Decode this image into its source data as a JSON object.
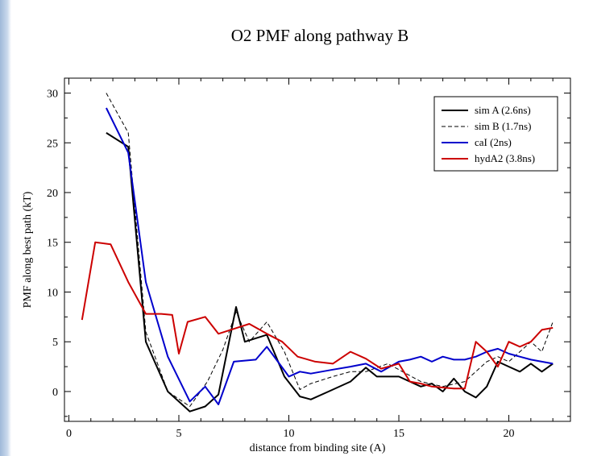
{
  "chart_data": {
    "type": "line",
    "title": "O2 PMF along pathway B",
    "xlabel": "distance from binding site (A)",
    "ylabel": "PMF along best path (kT)",
    "xlim": [
      -0.2,
      22.8
    ],
    "ylim": [
      -3,
      31.5
    ],
    "xticks": [
      0,
      5,
      10,
      15,
      20
    ],
    "yticks": [
      0,
      5,
      10,
      15,
      20,
      25,
      30
    ],
    "legend_position": "top-right",
    "series": [
      {
        "name": "sim A (2.6ns)",
        "color": "#000000",
        "style": "solid",
        "x": [
          1.7,
          2.7,
          3.5,
          4.5,
          5.5,
          6.2,
          6.8,
          7.6,
          8.0,
          9.0,
          9.8,
          10.5,
          11.0,
          11.8,
          12.8,
          13.5,
          14.0,
          15.0,
          16.0,
          16.5,
          17.0,
          17.5,
          18.0,
          18.5,
          19.0,
          19.5,
          20.0,
          20.5,
          21.0,
          21.5,
          22.0
        ],
        "y": [
          26.0,
          24.6,
          5.0,
          0.0,
          -2.0,
          -1.5,
          -0.3,
          8.5,
          5.0,
          5.7,
          1.5,
          -0.5,
          -0.8,
          0.0,
          1.0,
          2.4,
          1.5,
          1.5,
          0.5,
          0.8,
          0.0,
          1.3,
          0.0,
          -0.6,
          0.5,
          3.0,
          2.5,
          2.0,
          2.8,
          2.0,
          2.8
        ]
      },
      {
        "name": "sim B (1.7ns)",
        "color": "#000000",
        "style": "dashed",
        "x": [
          1.7,
          2.7,
          3.5,
          4.5,
          5.5,
          6.3,
          7.0,
          7.6,
          8.2,
          9.0,
          9.8,
          10.5,
          11.0,
          12.0,
          12.8,
          13.5,
          14.5,
          15.0,
          16.0,
          17.0,
          18.0,
          19.0,
          19.5,
          20.0,
          20.5,
          21.0,
          21.5,
          22.0
        ],
        "y": [
          30.0,
          26.0,
          6.0,
          0.0,
          -1.5,
          1.0,
          4.2,
          8.0,
          5.0,
          7.0,
          4.0,
          0.2,
          0.8,
          1.5,
          2.0,
          2.0,
          2.8,
          2.2,
          1.0,
          0.5,
          1.0,
          3.0,
          3.5,
          3.0,
          4.0,
          5.0,
          4.0,
          7.0
        ]
      },
      {
        "name": "caI (2ns)",
        "color": "#0000cc",
        "style": "solid",
        "x": [
          1.7,
          2.7,
          3.5,
          4.5,
          5.5,
          6.2,
          6.8,
          7.5,
          8.5,
          9.0,
          9.5,
          10.0,
          10.5,
          11.0,
          12.0,
          12.8,
          13.5,
          14.2,
          15.0,
          15.5,
          16.0,
          16.5,
          17.0,
          17.5,
          18.0,
          18.5,
          19.0,
          19.5,
          20.0,
          20.5,
          21.0,
          21.5,
          22.0
        ],
        "y": [
          28.5,
          24.0,
          11.0,
          3.5,
          -1.0,
          0.5,
          -1.3,
          3.0,
          3.2,
          4.5,
          3.0,
          1.5,
          2.0,
          1.8,
          2.2,
          2.5,
          2.8,
          2.0,
          3.0,
          3.2,
          3.5,
          3.0,
          3.5,
          3.2,
          3.2,
          3.5,
          4.0,
          4.3,
          3.8,
          3.5,
          3.2,
          3.0,
          2.8
        ]
      },
      {
        "name": "hydA2 (3.8ns)",
        "color": "#cc0000",
        "style": "solid",
        "x": [
          0.6,
          1.2,
          1.9,
          2.7,
          3.5,
          4.2,
          4.7,
          5.0,
          5.4,
          6.2,
          6.8,
          7.5,
          8.2,
          9.0,
          9.7,
          10.4,
          11.2,
          12.0,
          12.8,
          13.5,
          14.2,
          15.0,
          15.5,
          16.0,
          16.5,
          17.0,
          17.5,
          18.0,
          18.5,
          19.0,
          19.5,
          20.0,
          20.5,
          21.0,
          21.5,
          22.0
        ],
        "y": [
          7.2,
          15.0,
          14.8,
          11.0,
          7.8,
          7.8,
          7.7,
          3.8,
          7.0,
          7.5,
          5.8,
          6.3,
          6.8,
          5.8,
          5.0,
          3.5,
          3.0,
          2.8,
          4.0,
          3.3,
          2.3,
          2.8,
          1.0,
          0.8,
          0.5,
          0.4,
          0.3,
          0.3,
          5.0,
          4.0,
          2.5,
          5.0,
          4.5,
          5.0,
          6.2,
          6.4
        ]
      }
    ]
  }
}
